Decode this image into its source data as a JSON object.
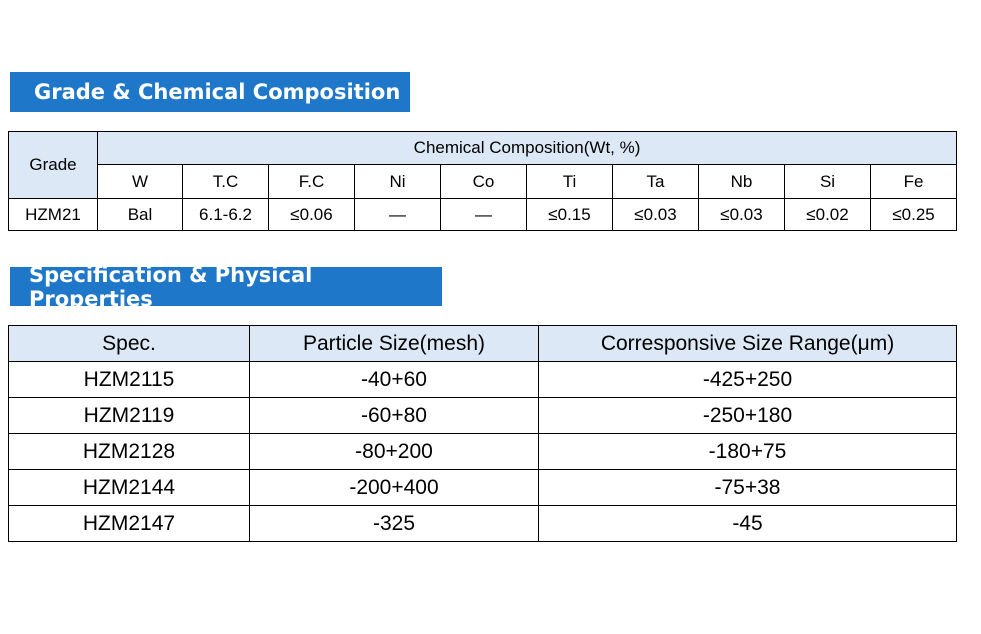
{
  "section1": {
    "title": "Grade & Chemical Composition",
    "grade_header": "Grade",
    "composition_header": "Chemical Composition(Wt, %)",
    "elements": [
      "W",
      "T.C",
      "F.C",
      "Ni",
      "Co",
      "Ti",
      "Ta",
      "Nb",
      "Si",
      "Fe"
    ],
    "row": {
      "grade": "HZM21",
      "values": [
        "Bal",
        "6.1-6.2",
        "≤0.06",
        "—",
        "—",
        "≤0.15",
        "≤0.03",
        "≤0.03",
        "≤0.02",
        "≤0.25"
      ]
    }
  },
  "section2": {
    "title": "Specification & Physical Properties",
    "headers": [
      "Spec.",
      "Particle Size(mesh)",
      "Corresponsive Size Range(μm)"
    ],
    "rows": [
      [
        "HZM2115",
        "-40+60",
        "-425+250"
      ],
      [
        "HZM2119",
        "-60+80",
        "-250+180"
      ],
      [
        "HZM2128",
        "-80+200",
        "-180+75"
      ],
      [
        "HZM2144",
        "-200+400",
        "-75+38"
      ],
      [
        "HZM2147",
        "-325",
        "-45"
      ]
    ]
  },
  "colors": {
    "banner": "#1f77c9",
    "header_fill": "#dce8f6"
  }
}
